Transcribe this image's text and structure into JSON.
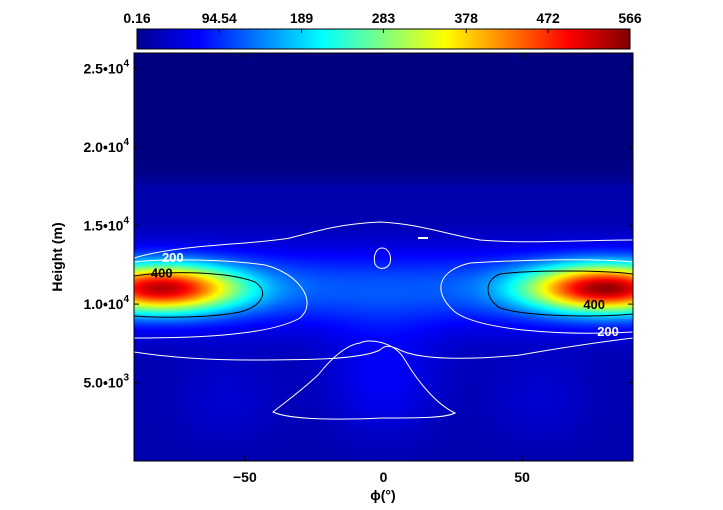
{
  "chart_data": {
    "type": "heatmap",
    "title": "",
    "xlabel": "ϕ(°)",
    "ylabel": "Height (m)",
    "xlim": [
      -90,
      90
    ],
    "ylim": [
      0,
      26000
    ],
    "x_ticks": [
      {
        "value": -50,
        "label": "−50"
      },
      {
        "value": 0,
        "label": "0"
      },
      {
        "value": 50,
        "label": "50"
      }
    ],
    "y_ticks": [
      {
        "value": 5000,
        "mant": "5.0•10",
        "exp": "3"
      },
      {
        "value": 10000,
        "mant": "1.0•10",
        "exp": "4"
      },
      {
        "value": 15000,
        "mant": "1.5•10",
        "exp": "4"
      },
      {
        "value": 20000,
        "mant": "2.0•10",
        "exp": "4"
      },
      {
        "value": 25000,
        "mant": "2.5•10",
        "exp": "4"
      }
    ],
    "colorbar": {
      "range": [
        0.16,
        566
      ],
      "colormap": "jet",
      "position": "top",
      "ticks": [
        {
          "value": 0.16,
          "label": "0.16"
        },
        {
          "value": 94.54,
          "label": "94.54"
        },
        {
          "value": 189,
          "label": "189"
        },
        {
          "value": 283,
          "label": "283"
        },
        {
          "value": 378,
          "label": "378"
        },
        {
          "value": 472,
          "label": "472"
        },
        {
          "value": 566,
          "label": "566"
        }
      ]
    },
    "grid": false,
    "features": {
      "jet_cores": [
        {
          "x": -80,
          "y": 11000,
          "peak": 530
        },
        {
          "x": 80,
          "y": 11000,
          "peak": 550
        }
      ],
      "contour_levels": [
        200,
        400
      ]
    },
    "contour_labels": [
      {
        "text": "200",
        "x": -76,
        "y": 13000,
        "color": "#ffffff"
      },
      {
        "text": "400",
        "x": -80,
        "y": 12000,
        "color": "#000000"
      },
      {
        "text": "400",
        "x": 76,
        "y": 10000,
        "color": "#000000"
      },
      {
        "text": "200",
        "x": 81,
        "y": 8300,
        "color": "#ffffff"
      }
    ]
  }
}
